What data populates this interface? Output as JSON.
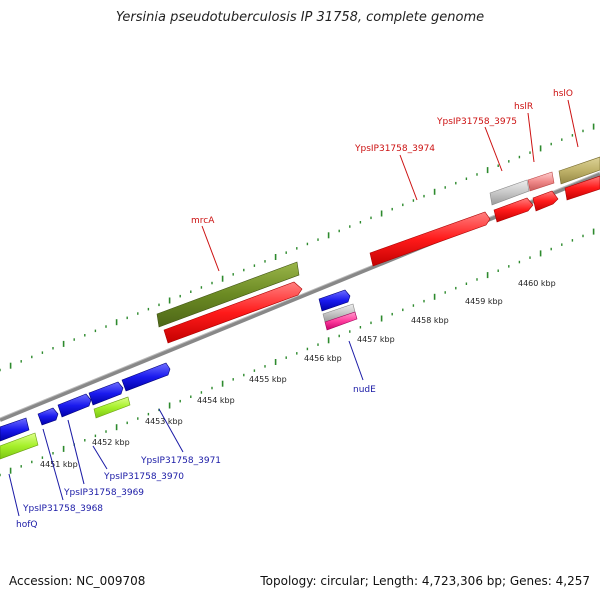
{
  "title": "Yersinia pseudotuberculosis IP 31758, complete genome",
  "footer": {
    "accession": "Accession: NC_009708",
    "summary": "Topology: circular; Length: 4,723,306 bp; Genes: 4,257"
  },
  "scale_labels": [
    "4451 kbp",
    "4452 kbp",
    "4453 kbp",
    "4454 kbp",
    "4455 kbp",
    "4456 kbp",
    "4457 kbp",
    "4458 kbp",
    "4459 kbp",
    "4460 kbp"
  ],
  "gene_labels_top": [
    "mrcA",
    "YpsIP31758_3974",
    "YpsIP31758_3975",
    "hslR",
    "hslO"
  ],
  "gene_labels_bottom": [
    "hofQ",
    "YpsIP31758_3968",
    "YpsIP31758_3969",
    "YpsIP31758_3970",
    "YpsIP31758_3971",
    "nudE"
  ],
  "colors": {
    "forward_cds": "#ff1a1a",
    "reverse_cds": "#1a1aee",
    "olive": "#6b8a23",
    "lime": "#a6f02a",
    "pink": "#ff3d9e",
    "gray": "#c8c8c8",
    "backbone": "#888888",
    "ticks": "#2d8a2d"
  }
}
